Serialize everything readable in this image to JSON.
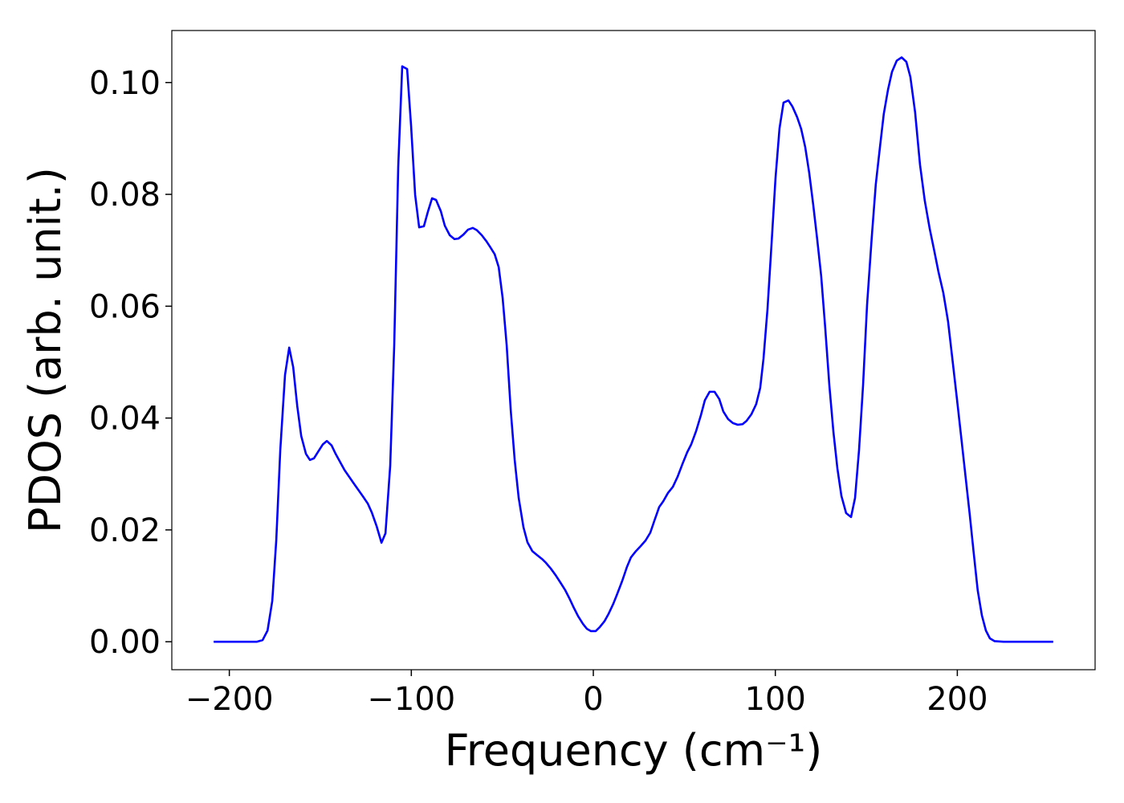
{
  "chart_data": {
    "type": "line",
    "xlabel": "Frequency (cm⁻¹)",
    "ylabel": "PDOS (arb. unit.)",
    "color": "#0000ff",
    "xlim": [
      -231.6,
      275.7
    ],
    "ylim": [
      -0.005,
      0.1093
    ],
    "xticks": [
      {
        "value": -200,
        "label": "−200"
      },
      {
        "value": -100,
        "label": "−100"
      },
      0,
      100,
      200
    ],
    "yticks": [
      {
        "value": 0,
        "label": "0.00"
      },
      {
        "value": 0.02,
        "label": "0.02"
      },
      {
        "value": 0.04,
        "label": "0.04"
      },
      {
        "value": 0.06,
        "label": "0.06"
      },
      {
        "value": 0.08,
        "label": "0.08"
      },
      {
        "value": 0.1,
        "label": "0.10"
      }
    ],
    "x": [
      -208.6,
      -184.8,
      -181.7,
      -179,
      -176.4,
      -174.2,
      -172,
      -169.4,
      -167.1,
      -164.9,
      -162.7,
      -160.5,
      -157.9,
      -155.7,
      -153.5,
      -150.8,
      -148.6,
      -146.4,
      -143.8,
      -141.6,
      -136.7,
      -131.4,
      -126.6,
      -123.9,
      -121.7,
      -119.1,
      -116.4,
      -114.2,
      -111.6,
      -109.4,
      -107.2,
      -105,
      -102.3,
      -100.1,
      -97.9,
      -95.7,
      -93.1,
      -90.8,
      -88.6,
      -86.4,
      -83.8,
      -81.6,
      -78.9,
      -76.3,
      -74.1,
      -71.4,
      -68.8,
      -66.2,
      -64,
      -61.3,
      -58.7,
      -56.5,
      -54.2,
      -52,
      -49.8,
      -47.6,
      -45.4,
      -43.2,
      -41,
      -38.4,
      -36.2,
      -33.5,
      -30.9,
      -28.2,
      -26,
      -23.4,
      -20.7,
      -18.1,
      -15.4,
      -13.2,
      -10.6,
      -8.4,
      -5.7,
      -3.5,
      -1.3,
      1.3,
      3.5,
      6.2,
      8.4,
      11,
      13.2,
      15.9,
      18.5,
      20.7,
      23.4,
      26,
      28.7,
      31.3,
      33.5,
      36.2,
      38.4,
      41,
      43.7,
      46.3,
      49,
      51.6,
      53.8,
      56.4,
      59.1,
      61.3,
      63.9,
      66.6,
      69.2,
      71.4,
      74.1,
      76.7,
      79.4,
      82,
      84.2,
      86.9,
      89.5,
      91.7,
      93.5,
      95.7,
      97.9,
      100.1,
      102.3,
      104.5,
      107.2,
      109.4,
      112,
      114.2,
      116.4,
      118.6,
      120.8,
      123,
      125.2,
      127.4,
      129.7,
      131.9,
      134.1,
      136.3,
      138.9,
      141.6,
      143.8,
      146,
      148.2,
      150.4,
      153,
      155.2,
      157.4,
      159.6,
      161.9,
      164.1,
      166.7,
      169.4,
      172,
      174.2,
      176.8,
      179.5,
      182.1,
      184.8,
      187.4,
      189.6,
      192.3,
      194.9,
      197.1,
      199.8,
      202.4,
      204.6,
      206.8,
      209,
      211.2,
      213.5,
      215.7,
      217.9,
      220.5,
      225.4,
      252.7
    ],
    "values": [
      0,
      0,
      0.0003,
      0.002,
      0.0073,
      0.0182,
      0.0343,
      0.0477,
      0.0526,
      0.0491,
      0.0422,
      0.0368,
      0.0336,
      0.0325,
      0.0328,
      0.0342,
      0.0353,
      0.0359,
      0.0351,
      0.0336,
      0.0307,
      0.0282,
      0.026,
      0.0247,
      0.0231,
      0.0207,
      0.0177,
      0.0194,
      0.0315,
      0.053,
      0.0849,
      0.1029,
      0.1024,
      0.0921,
      0.0799,
      0.0741,
      0.0743,
      0.077,
      0.0793,
      0.079,
      0.077,
      0.0744,
      0.0727,
      0.072,
      0.0721,
      0.0728,
      0.0737,
      0.074,
      0.0736,
      0.0727,
      0.0716,
      0.0705,
      0.0693,
      0.067,
      0.0614,
      0.053,
      0.0415,
      0.0325,
      0.0257,
      0.0205,
      0.0178,
      0.0162,
      0.0155,
      0.0148,
      0.0141,
      0.0131,
      0.0119,
      0.0106,
      0.0092,
      0.0078,
      0.006,
      0.0046,
      0.0032,
      0.0023,
      0.0019,
      0.0019,
      0.0026,
      0.0037,
      0.005,
      0.0068,
      0.0086,
      0.0109,
      0.0134,
      0.0151,
      0.0162,
      0.0171,
      0.0181,
      0.0195,
      0.0216,
      0.0241,
      0.0251,
      0.0266,
      0.0277,
      0.0295,
      0.0318,
      0.0339,
      0.0353,
      0.0376,
      0.0405,
      0.0432,
      0.0447,
      0.0447,
      0.0434,
      0.0412,
      0.0398,
      0.0391,
      0.0388,
      0.0389,
      0.0395,
      0.0407,
      0.0425,
      0.0454,
      0.0506,
      0.0595,
      0.071,
      0.0829,
      0.0918,
      0.0964,
      0.0968,
      0.0957,
      0.0938,
      0.0917,
      0.0885,
      0.0839,
      0.0782,
      0.072,
      0.0654,
      0.0562,
      0.0458,
      0.0376,
      0.031,
      0.0261,
      0.023,
      0.0223,
      0.0257,
      0.0343,
      0.0458,
      0.0602,
      0.0724,
      0.0818,
      0.0882,
      0.0944,
      0.0987,
      0.1019,
      0.1039,
      0.1045,
      0.1037,
      0.101,
      0.0947,
      0.0853,
      0.0789,
      0.0739,
      0.0698,
      0.0662,
      0.0624,
      0.0573,
      0.0511,
      0.0434,
      0.0358,
      0.0293,
      0.0228,
      0.0159,
      0.0092,
      0.0047,
      0.002,
      0.0006,
      0.0001,
      0,
      0
    ]
  }
}
